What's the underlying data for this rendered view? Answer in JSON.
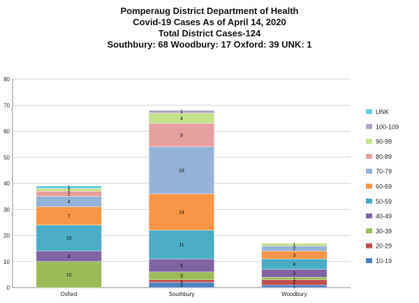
{
  "titles": [
    "Pomperaug District Department of Health",
    "Covid-19 Cases As of April 14, 2020",
    "Total District Cases-124",
    "Southbury: 68 Woodbury: 17 Oxford: 39 UNK: 1"
  ],
  "chart_data": {
    "type": "bar",
    "stacked": true,
    "title": "Pomperaug District Department of Health",
    "categories": [
      "Oxford",
      "Southbury",
      "Woodbury"
    ],
    "ylim": [
      0,
      80
    ],
    "yticks": [
      0,
      10,
      20,
      30,
      40,
      50,
      60,
      70,
      80
    ],
    "grid": true,
    "legend_position": "right",
    "series": [
      {
        "name": "10-19",
        "color": "#4f81bd",
        "values": [
          0,
          2,
          1
        ]
      },
      {
        "name": "20-29",
        "color": "#c0504d",
        "values": [
          0,
          1,
          2
        ]
      },
      {
        "name": "30-39",
        "color": "#9bbb59",
        "values": [
          10,
          3,
          1
        ]
      },
      {
        "name": "40-49",
        "color": "#8064a2",
        "values": [
          4,
          5,
          3
        ]
      },
      {
        "name": "50-59",
        "color": "#4bacc6",
        "values": [
          10,
          11,
          4
        ]
      },
      {
        "name": "60-69",
        "color": "#f79646",
        "values": [
          7,
          14,
          3
        ]
      },
      {
        "name": "70-79",
        "color": "#95b3d7",
        "values": [
          4,
          18,
          2
        ]
      },
      {
        "name": "80-89",
        "color": "#e6a0a0",
        "values": [
          2,
          9,
          0
        ]
      },
      {
        "name": "90-99",
        "color": "#c4e08b",
        "values": [
          1,
          4,
          1
        ]
      },
      {
        "name": "100-109",
        "color": "#b3a2c7",
        "values": [
          0,
          1,
          0
        ]
      },
      {
        "name": "UNK",
        "color": "#6dcde0",
        "values": [
          1,
          0,
          0
        ]
      }
    ]
  }
}
